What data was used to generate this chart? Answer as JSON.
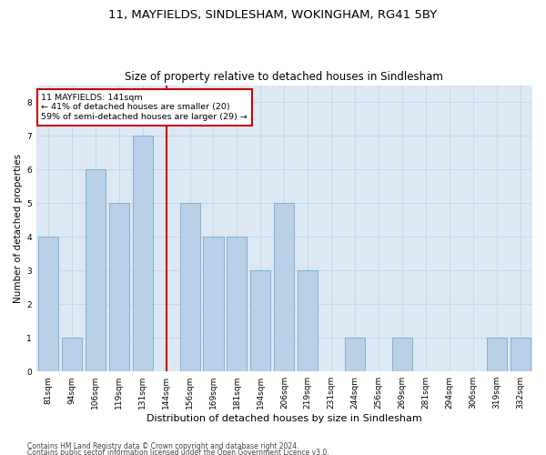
{
  "title1": "11, MAYFIELDS, SINDLESHAM, WOKINGHAM, RG41 5BY",
  "title2": "Size of property relative to detached houses in Sindlesham",
  "xlabel": "Distribution of detached houses by size in Sindlesham",
  "ylabel": "Number of detached properties",
  "categories": [
    "81sqm",
    "94sqm",
    "106sqm",
    "119sqm",
    "131sqm",
    "144sqm",
    "156sqm",
    "169sqm",
    "181sqm",
    "194sqm",
    "206sqm",
    "219sqm",
    "231sqm",
    "244sqm",
    "256sqm",
    "269sqm",
    "281sqm",
    "294sqm",
    "306sqm",
    "319sqm",
    "332sqm"
  ],
  "values": [
    4,
    1,
    6,
    5,
    7,
    0,
    5,
    4,
    4,
    3,
    5,
    3,
    0,
    1,
    0,
    1,
    0,
    0,
    0,
    1,
    1
  ],
  "bar_color": "#b8d0e8",
  "bar_edge_color": "#7aaac8",
  "property_line_x": 5.0,
  "annotation_text": "11 MAYFIELDS: 141sqm\n← 41% of detached houses are smaller (20)\n59% of semi-detached houses are larger (29) →",
  "annotation_box_color": "#ffffff",
  "annotation_box_edge_color": "#cc0000",
  "vline_color": "#cc0000",
  "ylim": [
    0,
    8.5
  ],
  "yticks": [
    0,
    1,
    2,
    3,
    4,
    5,
    6,
    7,
    8
  ],
  "grid_color": "#c8d8e8",
  "bg_color": "#dce8f4",
  "footer1": "Contains HM Land Registry data © Crown copyright and database right 2024.",
  "footer2": "Contains public sector information licensed under the Open Government Licence v3.0.",
  "title_fontsize": 9.5,
  "subtitle_fontsize": 8.5,
  "ylabel_fontsize": 7.5,
  "xlabel_fontsize": 8.0,
  "tick_fontsize": 6.5,
  "annot_fontsize": 6.8,
  "footer_fontsize": 5.5
}
